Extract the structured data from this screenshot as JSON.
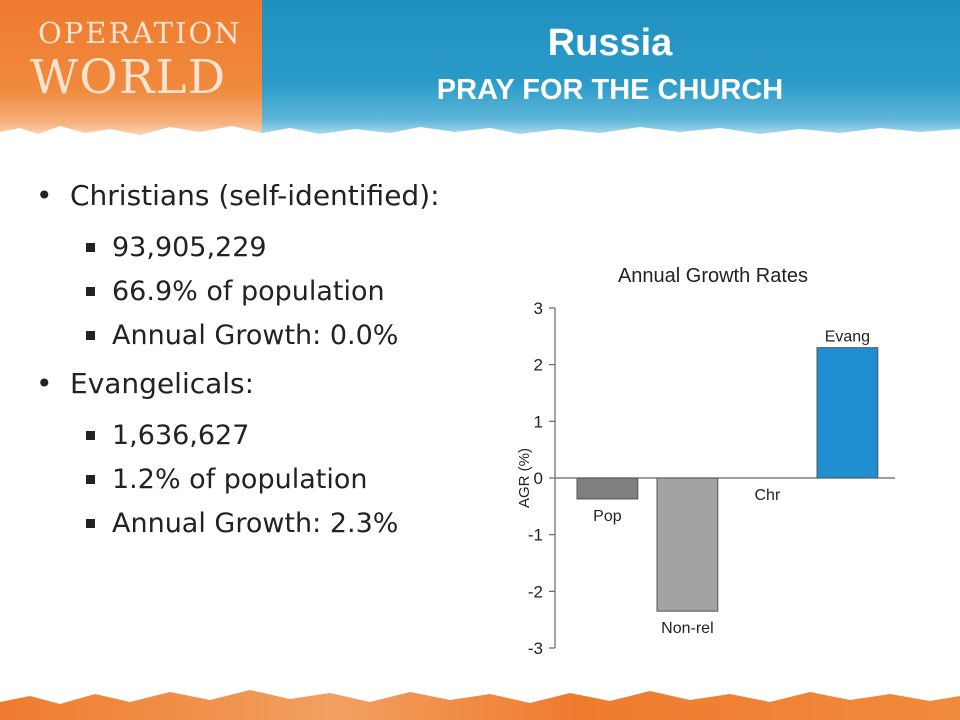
{
  "header": {
    "logo_line1": "OPERATION",
    "logo_line2": "WORLD",
    "title": "Russia",
    "subtitle": "PRAY FOR THE CHURCH"
  },
  "bullets": [
    {
      "label": "Christians (self-identified):",
      "items": [
        "93,905,229",
        "66.9% of population",
        "Annual Growth: 0.0%"
      ]
    },
    {
      "label": "Evangelicals:",
      "items": [
        "1,636,627",
        "1.2% of population",
        "Annual Growth: 2.3%"
      ]
    }
  ],
  "colors": {
    "banner_blue": "#2a9bc9",
    "banner_orange": "#ee7a2f",
    "bar_pop": "#7f7f7f",
    "bar_nonrel": "#a3a3a3",
    "bar_evang": "#1f8fd1"
  },
  "chart_data": {
    "type": "bar",
    "title": "Annual Growth Rates",
    "ylabel": "AGR (%)",
    "xlabel": "",
    "ylim": [
      -3,
      3
    ],
    "yticks": [
      3,
      2,
      1,
      0,
      -1,
      -2,
      -3
    ],
    "categories": [
      "Pop",
      "Non-rel",
      "Chr",
      "Evang"
    ],
    "values": [
      -0.37,
      -2.35,
      0.0,
      2.3
    ],
    "bar_colors": [
      "#7f7f7f",
      "#a3a3a3",
      "#9a9a9a",
      "#1f8fd1"
    ],
    "grid": false,
    "legend": "none"
  }
}
